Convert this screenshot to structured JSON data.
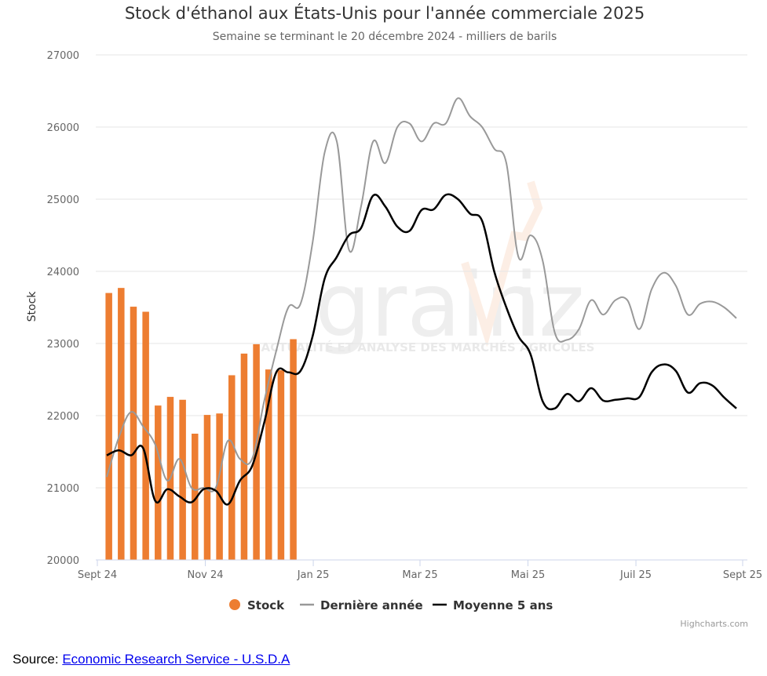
{
  "chart_data": {
    "type": "bar+line",
    "title": "Stock d'éthanol aux États-Unis pour l'année commerciale 2025",
    "subtitle": "Semaine se terminant le 20 décembre 2024 - milliers de barils",
    "ylabel": "Stock",
    "ylim": [
      20000,
      27000
    ],
    "yticks": [
      "20000",
      "21000",
      "22000",
      "23000",
      "24000",
      "25000",
      "26000",
      "27000"
    ],
    "xticks": [
      "Sept 24",
      "Nov 24",
      "Jan 25",
      "Mar 25",
      "Mai 25",
      "Juil 25",
      "Sept 25"
    ],
    "x_unit": "semaine",
    "x_range": [
      0,
      53
    ],
    "xtick_weeks": [
      0,
      8.7,
      17.4,
      26,
      34.7,
      43.4,
      52
    ],
    "grid": true,
    "legend_position": "bottom-center",
    "series": [
      {
        "name": "Stock",
        "type": "bar",
        "color": "#ed7d31",
        "x": [
          1,
          2,
          3,
          4,
          5,
          6,
          7,
          8,
          9,
          10,
          11,
          12,
          13,
          14,
          15,
          16,
          17
        ],
        "values": [
          23700,
          23770,
          23510,
          23440,
          22140,
          22260,
          22220,
          21750,
          22010,
          22030,
          22560,
          22860,
          22990,
          22640,
          22630,
          23060,
          null
        ]
      },
      {
        "name": "Dernière année",
        "type": "line",
        "color": "#999999",
        "x": [
          0,
          1,
          2,
          3,
          4,
          5,
          6,
          7,
          8,
          9,
          10,
          11,
          12,
          13,
          14,
          15,
          16,
          17,
          18,
          19,
          20,
          21,
          22,
          23,
          24,
          25,
          26,
          27,
          28,
          29,
          30,
          31,
          32,
          33,
          34,
          35,
          36,
          37,
          38,
          39,
          40,
          41,
          42,
          43,
          44,
          45,
          46,
          47,
          48,
          49,
          50,
          51,
          52
        ],
        "values": [
          21150,
          21700,
          22050,
          21850,
          21600,
          21100,
          21400,
          21000,
          21000,
          21000,
          21650,
          21400,
          21400,
          22200,
          22900,
          23500,
          23550,
          24400,
          25650,
          25800,
          24300,
          24900,
          25800,
          25500,
          26000,
          26050,
          25800,
          26050,
          26050,
          26400,
          26150,
          26000,
          25700,
          25500,
          24200,
          24500,
          24150,
          23150,
          23050,
          23200,
          23600,
          23400,
          23600,
          23600,
          23200,
          23750,
          23980,
          23800,
          23400,
          23550,
          23580,
          23500,
          23350
        ]
      },
      {
        "name": "Moyenne 5 ans",
        "type": "line",
        "color": "#000000",
        "x": [
          0,
          1,
          2,
          3,
          4,
          5,
          6,
          7,
          8,
          9,
          10,
          11,
          12,
          13,
          14,
          15,
          16,
          17,
          18,
          19,
          20,
          21,
          22,
          23,
          24,
          25,
          26,
          27,
          28,
          29,
          30,
          31,
          32,
          33,
          34,
          35,
          36,
          37,
          38,
          39,
          40,
          41,
          42,
          43,
          44,
          45,
          46,
          47,
          48,
          49,
          50,
          51,
          52
        ],
        "values": [
          21450,
          21520,
          21450,
          21550,
          20820,
          20980,
          20880,
          20800,
          20980,
          20960,
          20770,
          21100,
          21300,
          21900,
          22600,
          22600,
          22620,
          23100,
          23900,
          24200,
          24500,
          24600,
          25050,
          24900,
          24620,
          24560,
          24850,
          24860,
          25060,
          25000,
          24800,
          24700,
          24000,
          23500,
          23100,
          22850,
          22200,
          22100,
          22300,
          22200,
          22380,
          22210,
          22220,
          22240,
          22260,
          22600,
          22710,
          22620,
          22320,
          22450,
          22420,
          22250,
          22100
        ]
      }
    ]
  },
  "watermark": {
    "logo_text": "grainviz",
    "tagline": "ACTUALITÉ ET ANALYSE DES MARCHÉS AGRICOLES"
  },
  "credits": "Highcharts.com",
  "source": {
    "label": "Source: ",
    "link_text": "Economic Research Service - U.S.D.A"
  },
  "colors": {
    "grid": "#e6e6e6",
    "axis": "#ccd6eb",
    "tick_text": "#666666",
    "title": "#333333",
    "bar": "#ed7d31",
    "last_year": "#999999",
    "five_year": "#000000"
  }
}
